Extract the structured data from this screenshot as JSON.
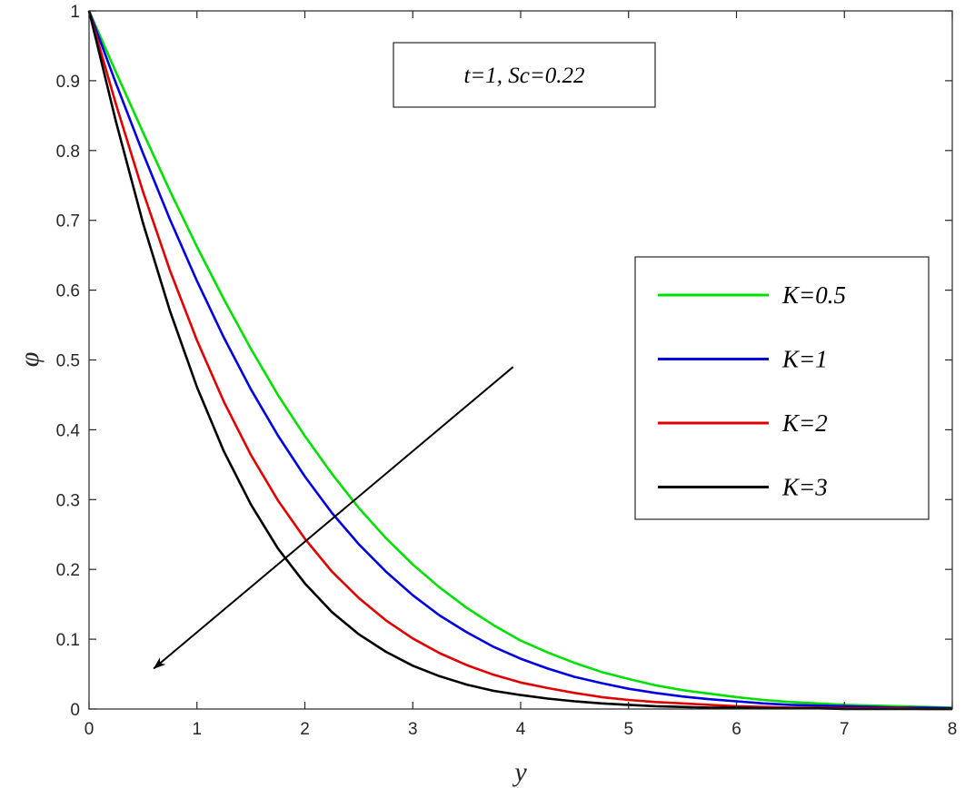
{
  "chart_data": {
    "type": "line",
    "xlabel": "y",
    "ylabel": "φ",
    "xlim": [
      0,
      8
    ],
    "ylim": [
      0,
      1
    ],
    "xticks": [
      "0",
      "1",
      "2",
      "3",
      "4",
      "5",
      "6",
      "7",
      "8"
    ],
    "yticks": [
      "0",
      "0.1",
      "0.2",
      "0.3",
      "0.4",
      "0.5",
      "0.6",
      "0.7",
      "0.8",
      "0.9",
      "1"
    ],
    "annotation": "t=1, Sc=0.22",
    "legend_position": "right",
    "grid": false,
    "x": [
      0,
      0.25,
      0.5,
      0.75,
      1,
      1.25,
      1.5,
      1.75,
      2,
      2.25,
      2.5,
      2.75,
      3,
      3.25,
      3.5,
      3.75,
      4,
      4.25,
      4.5,
      4.75,
      5,
      5.25,
      5.5,
      5.75,
      6,
      6.25,
      6.5,
      6.75,
      7,
      7.25,
      7.5,
      7.75,
      8
    ],
    "series": [
      {
        "name": "K=0.5",
        "color": "#00e000",
        "values": [
          1,
          0.912,
          0.826,
          0.742,
          0.662,
          0.587,
          0.516,
          0.45,
          0.391,
          0.337,
          0.288,
          0.245,
          0.207,
          0.174,
          0.145,
          0.12,
          0.098,
          0.081,
          0.066,
          0.053,
          0.043,
          0.034,
          0.027,
          0.022,
          0.017,
          0.013,
          0.01,
          0.008,
          0.006,
          0.005,
          0.004,
          0.003,
          0.002
        ]
      },
      {
        "name": "K=1",
        "color": "#0000e0",
        "values": [
          1,
          0.896,
          0.796,
          0.701,
          0.613,
          0.532,
          0.458,
          0.392,
          0.333,
          0.281,
          0.236,
          0.197,
          0.163,
          0.134,
          0.11,
          0.089,
          0.072,
          0.058,
          0.046,
          0.037,
          0.029,
          0.023,
          0.018,
          0.014,
          0.011,
          0.008,
          0.006,
          0.005,
          0.004,
          0.003,
          0.002,
          0.002,
          0.001
        ]
      },
      {
        "name": "K=2",
        "color": "#e00000",
        "values": [
          1,
          0.866,
          0.741,
          0.628,
          0.528,
          0.44,
          0.364,
          0.299,
          0.244,
          0.197,
          0.159,
          0.127,
          0.101,
          0.08,
          0.063,
          0.049,
          0.038,
          0.03,
          0.023,
          0.017,
          0.013,
          0.01,
          0.008,
          0.006,
          0.004,
          0.003,
          0.002,
          0.002,
          0.001,
          0.001,
          0.001,
          0.0,
          0.0
        ]
      },
      {
        "name": "K=3",
        "color": "#000000",
        "values": [
          1,
          0.841,
          0.696,
          0.57,
          0.461,
          0.369,
          0.293,
          0.23,
          0.18,
          0.139,
          0.107,
          0.082,
          0.062,
          0.047,
          0.035,
          0.026,
          0.02,
          0.015,
          0.011,
          0.008,
          0.006,
          0.004,
          0.003,
          0.002,
          0.002,
          0.001,
          0.001,
          0.001,
          0.0,
          0.0,
          0.0,
          0.0,
          0.0
        ]
      }
    ],
    "arrow": {
      "from": [
        3.93,
        0.49
      ],
      "to": [
        0.6,
        0.058
      ]
    }
  }
}
